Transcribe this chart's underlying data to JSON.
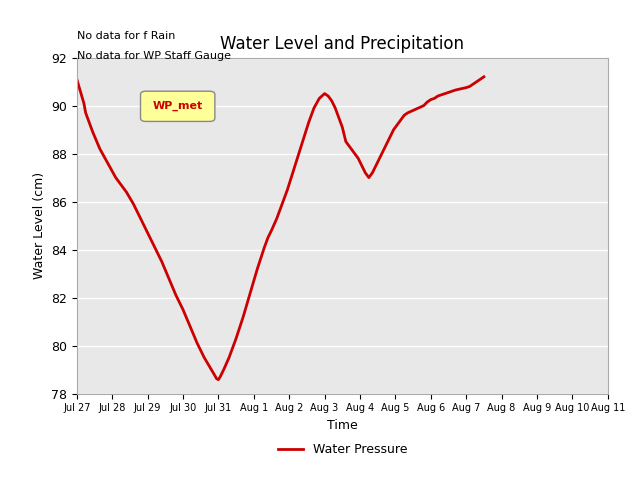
{
  "title": "Water Level and Precipitation",
  "xlabel": "Time",
  "ylabel": "Water Level (cm)",
  "ylim": [
    78,
    92
  ],
  "background_color": "#ffffff",
  "plot_bg_color": "#e8e8e8",
  "line_color": "#cc0000",
  "line_width": 2.0,
  "top_left_text1": "No data for f Rain",
  "top_left_text2": "No data for WP Staff Gauge",
  "legend_box_label": "WP_met",
  "legend_box_bg": "#ffff99",
  "legend_box_border": "#888888",
  "legend_label": "Water Pressure",
  "x_tick_labels": [
    "Jul 27",
    "Jul 28",
    "Jul 29",
    "Jul 30",
    "Jul 31",
    "Aug 1",
    "Aug 2",
    "Aug 3",
    "Aug 4",
    "Aug 5",
    "Aug 6",
    "Aug 7",
    "Aug 8",
    "Aug 9",
    "Aug 10",
    "Aug 11"
  ],
  "x_values": [
    0,
    1,
    2,
    3,
    4,
    5,
    6,
    7,
    8,
    9,
    10,
    11,
    12,
    13,
    14,
    15
  ],
  "y_values": [
    91.1,
    90.85,
    90.6,
    90.35,
    90.1,
    89.7,
    89.3,
    88.9,
    88.55,
    88.2,
    87.8,
    87.4,
    87.0,
    86.7,
    86.4,
    85.9,
    85.3,
    84.7,
    84.1,
    83.5,
    82.8,
    82.1,
    81.5,
    80.8,
    80.1,
    79.5,
    79.0,
    78.75,
    78.62,
    78.58,
    78.7,
    79.0,
    79.5,
    80.3,
    81.2,
    82.2,
    83.2,
    84.1,
    84.5,
    84.8,
    85.3,
    85.9,
    86.5,
    87.2,
    87.9,
    88.6,
    89.3,
    89.9,
    90.3,
    90.5,
    90.4,
    90.2,
    89.9,
    89.5,
    89.1,
    88.8,
    88.5,
    88.4,
    88.3,
    88.2,
    88.0,
    87.8,
    87.5,
    87.2,
    87.0,
    87.2,
    87.5,
    87.8,
    88.1,
    88.4,
    88.7,
    89.0,
    89.2,
    89.4,
    89.6,
    89.7,
    89.8,
    89.9,
    90.0,
    90.15,
    90.25,
    90.3,
    90.4,
    90.45,
    90.5,
    90.55,
    90.6,
    90.65,
    90.7,
    90.75,
    90.8,
    90.9,
    91.0,
    91.1,
    91.2
  ],
  "x_vals_fine": [
    0.0,
    0.05,
    0.1,
    0.15,
    0.2,
    0.25,
    0.35,
    0.45,
    0.55,
    0.65,
    0.8,
    0.95,
    1.1,
    1.25,
    1.4,
    1.6,
    1.8,
    2.0,
    2.2,
    2.4,
    2.6,
    2.8,
    3.0,
    3.2,
    3.4,
    3.6,
    3.8,
    3.9,
    3.95,
    4.0,
    4.05,
    4.15,
    4.3,
    4.5,
    4.7,
    4.9,
    5.1,
    5.3,
    5.4,
    5.5,
    5.65,
    5.8,
    5.95,
    6.1,
    6.25,
    6.4,
    6.55,
    6.7,
    6.85,
    7.0,
    7.1,
    7.2,
    7.3,
    7.4,
    7.5,
    7.55,
    7.6,
    7.65,
    7.7,
    7.75,
    7.85,
    7.95,
    8.05,
    8.15,
    8.25,
    8.35,
    8.45,
    8.55,
    8.65,
    8.75,
    8.85,
    8.95,
    9.05,
    9.15,
    9.25,
    9.35,
    9.5,
    9.65,
    9.8,
    9.9,
    10.0,
    10.1,
    10.2,
    10.3,
    10.4,
    10.5,
    10.6,
    10.7,
    10.85,
    11.0,
    11.1,
    11.2,
    11.3,
    11.4,
    11.5
  ]
}
